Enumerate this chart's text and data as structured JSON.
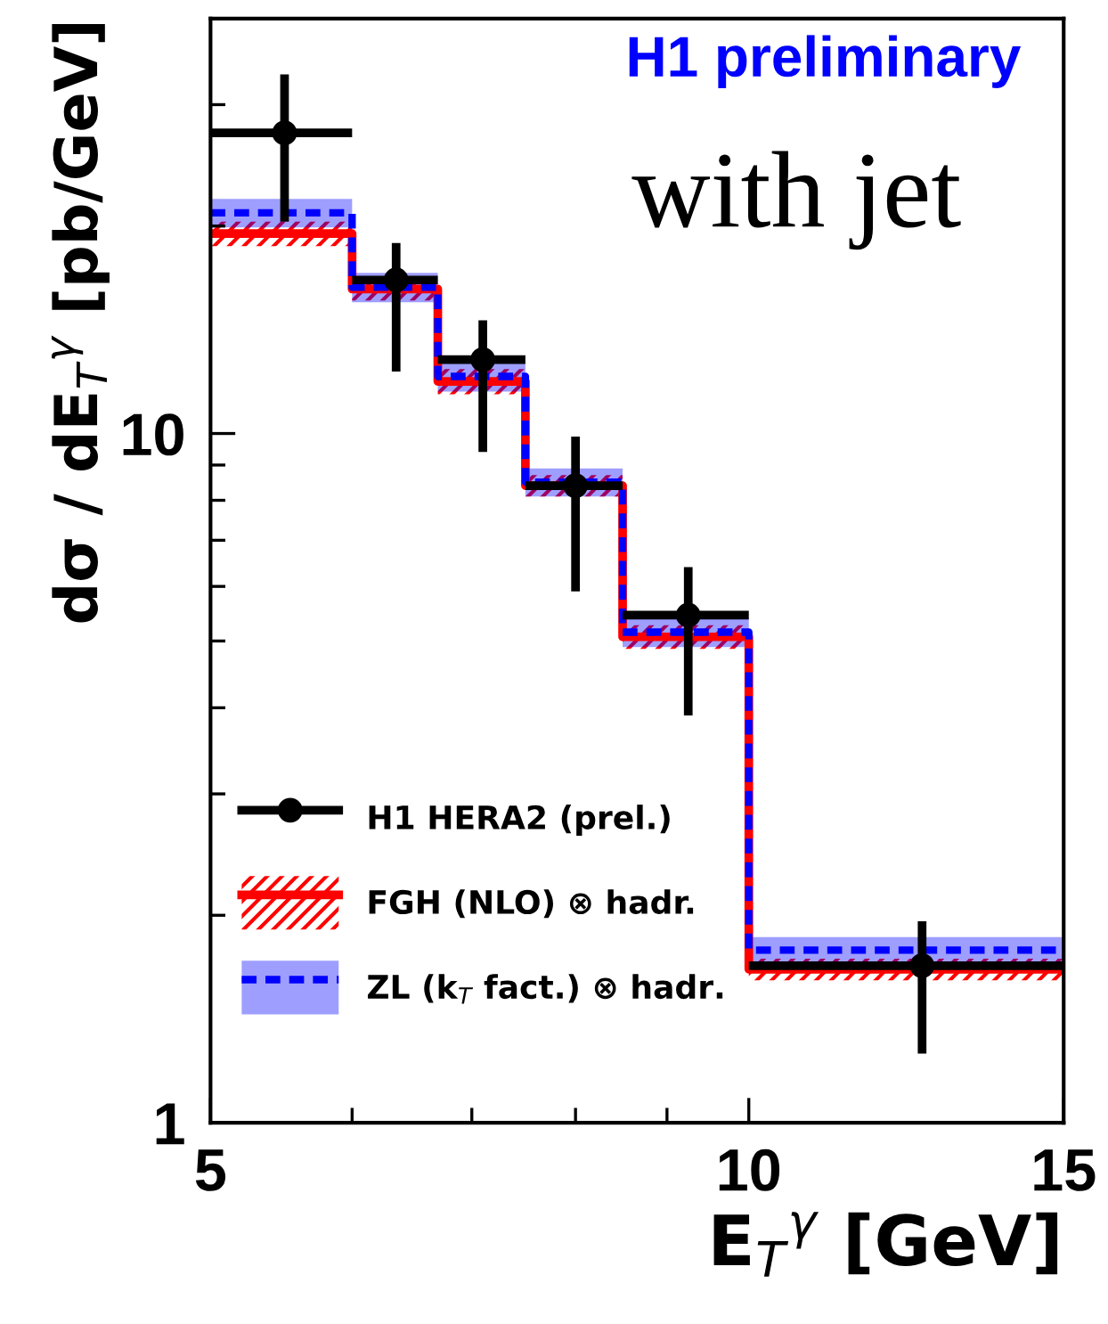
{
  "chart_data": {
    "type": "step",
    "xlabel": "E$_{T}$$^{γ}$ [GeV]",
    "ylabel": "dσ / dE$_{T}$$^{γ}$ [pb/GeV]",
    "annotations": [
      "H1 preliminary",
      "with jet"
    ],
    "log": "xy",
    "xlim": [
      5,
      15
    ],
    "ylim": [
      1,
      40
    ],
    "xticks": [
      5,
      {
        "value": 6,
        "label": null
      },
      {
        "value": 7,
        "label": null
      },
      {
        "value": 8,
        "label": null
      },
      {
        "value": 9,
        "label": null
      },
      10,
      15
    ],
    "yticks": [
      1,
      {
        "value": 2,
        "label": null
      },
      {
        "value": 3,
        "label": null
      },
      {
        "value": 4,
        "label": null
      },
      {
        "value": 5,
        "label": null
      },
      {
        "value": 6,
        "label": null
      },
      {
        "value": 7,
        "label": null
      },
      {
        "value": 8,
        "label": null
      },
      {
        "value": 9,
        "label": null
      },
      10,
      {
        "value": 20,
        "label": null
      },
      {
        "value": 30,
        "label": null
      }
    ],
    "legend": "bottom left",
    "grid": false,
    "series": [
      {
        "name": "FGH (NLO) ⊗ hadr.",
        "color": "#ff0000",
        "line_style": "solid",
        "x": [
          5,
          6,
          6.7,
          7.5,
          8.5,
          10,
          15
        ],
        "values": [
          19.5,
          16.2,
          11.9,
          8.4,
          5.07,
          1.67,
          1.67
        ],
        "lower": [
          18.7,
          15.6,
          11.4,
          8.1,
          4.87,
          1.61,
          1.61
        ],
        "upper": [
          20.3,
          16.8,
          12.4,
          8.7,
          5.27,
          1.73,
          1.73
        ]
      },
      {
        "name": "ZL (k$_{T}$ fact.) ⊗ hadr.",
        "color": "#0000ff",
        "line_style": "dashed",
        "x": [
          5,
          6,
          6.7,
          7.5,
          8.5,
          10,
          15
        ],
        "values": [
          20.9,
          16.3,
          12.1,
          8.5,
          5.15,
          1.78,
          1.78
        ],
        "lower": [
          19.9,
          15.5,
          11.5,
          8.1,
          4.9,
          1.7,
          1.7
        ],
        "upper": [
          21.9,
          17.1,
          12.7,
          8.9,
          5.4,
          1.86,
          1.86
        ]
      },
      {
        "name": "H1 HERA2 (prel.)",
        "type": "scatter",
        "color": "#000000",
        "marker": "circle",
        "x": [
          5.5,
          6.35,
          7.1,
          8.0,
          9.25,
          12.5
        ],
        "values": [
          27.3,
          16.7,
          12.8,
          8.4,
          5.45,
          1.69
        ],
        "errors": [
          [
            20.3,
            33.2
          ],
          [
            12.3,
            18.9
          ],
          [
            9.4,
            14.6
          ],
          [
            5.9,
            9.9
          ],
          [
            3.9,
            6.4
          ],
          [
            1.26,
            1.96
          ]
        ],
        "xerrors": [
          [
            5,
            6
          ],
          [
            6,
            6.7
          ],
          [
            6.7,
            7.5
          ],
          [
            7.5,
            8.5
          ],
          [
            8.5,
            10
          ],
          [
            10,
            15
          ]
        ]
      }
    ]
  }
}
